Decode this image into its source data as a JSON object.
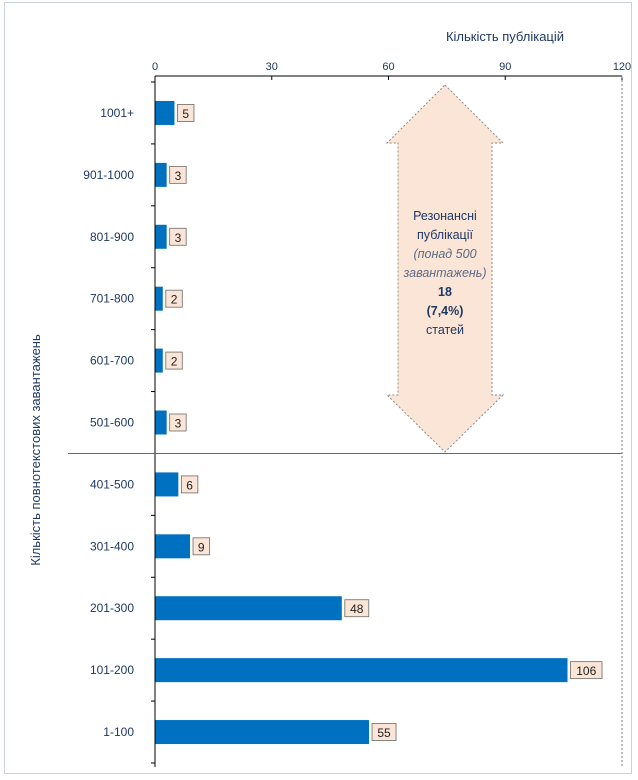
{
  "chart_data": {
    "type": "bar",
    "orientation": "horizontal",
    "xlabel": "Кількість публікацій",
    "ylabel": "Кількість повнотекстових завантажень",
    "xlim": [
      0,
      120
    ],
    "xticks": [
      0,
      30,
      60,
      90,
      120
    ],
    "categories": [
      "1001+",
      "901-1000",
      "801-900",
      "701-800",
      "601-700",
      "501-600",
      "401-500",
      "301-400",
      "201-300",
      "101-200",
      "1-100"
    ],
    "values": [
      5,
      3,
      3,
      2,
      2,
      3,
      6,
      9,
      48,
      106,
      55
    ],
    "bar_color": "#0070c0",
    "label_box_color": "#fbe5d6",
    "axis_text_color": "#1f3864",
    "annotation": {
      "arrow_color": "#fbe5d6",
      "lines": [
        {
          "text": "Резонансні",
          "style": "normal"
        },
        {
          "text": "публікації",
          "style": "normal"
        },
        {
          "text": "(понад 500",
          "style": "italic"
        },
        {
          "text": "завантажень)",
          "style": "italic"
        },
        {
          "text": "18",
          "style": "bold"
        },
        {
          "text": "(7,4%)",
          "style": "bold"
        },
        {
          "text": "статей",
          "style": "normal"
        }
      ]
    },
    "grid": false,
    "legend": "none"
  }
}
